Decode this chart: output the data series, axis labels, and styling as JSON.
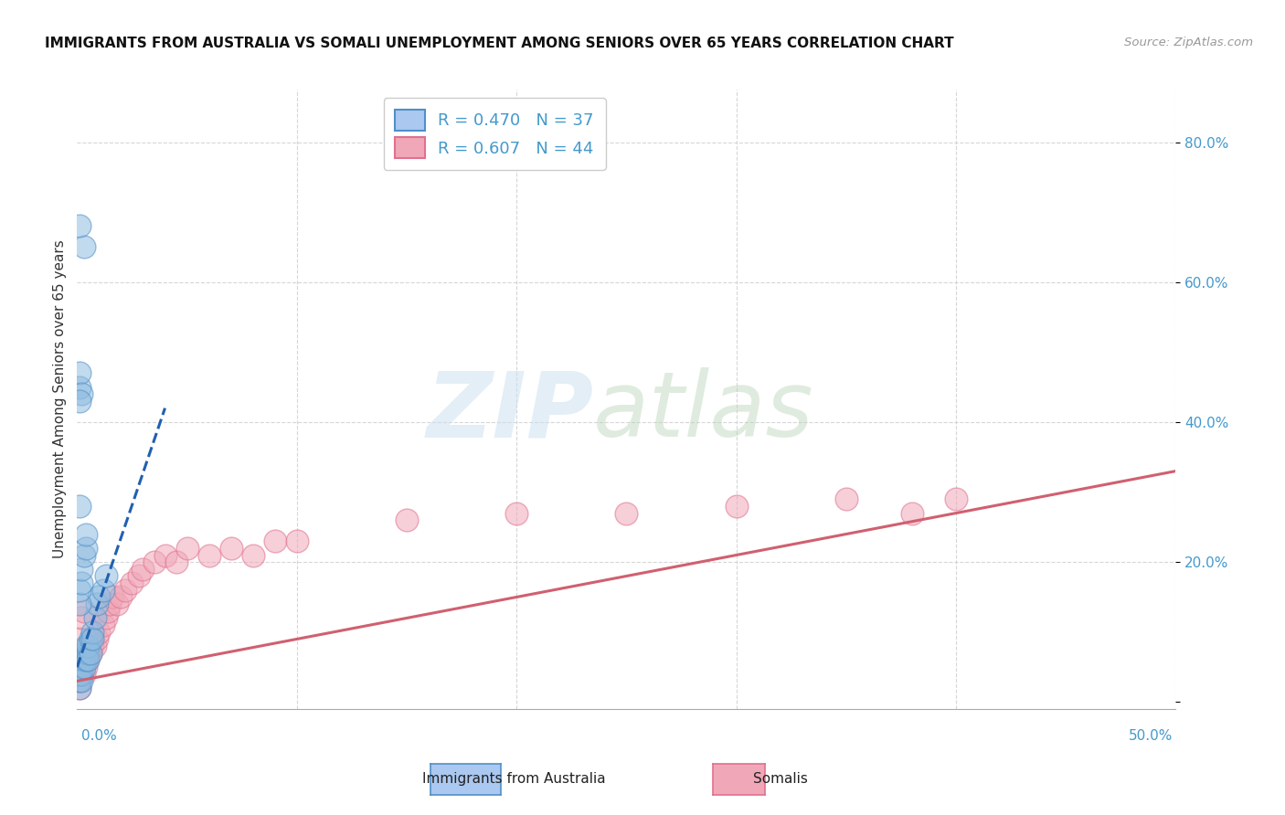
{
  "title": "IMMIGRANTS FROM AUSTRALIA VS SOMALI UNEMPLOYMENT AMONG SENIORS OVER 65 YEARS CORRELATION CHART",
  "source": "Source: ZipAtlas.com",
  "ylabel": "Unemployment Among Seniors over 65 years",
  "legend1_label": "R = 0.470   N = 37",
  "legend2_label": "R = 0.607   N = 44",
  "legend1_fc": "#aac8f0",
  "legend2_fc": "#f0a8b8",
  "blue_fc": "#90bce0",
  "pink_fc": "#f0a8b8",
  "blue_ec": "#5090c8",
  "pink_ec": "#e07090",
  "blue_line_color": "#2060b0",
  "pink_line_color": "#d06070",
  "xlim": [
    0.0,
    0.5
  ],
  "ylim": [
    -0.01,
    0.875
  ],
  "yticks": [
    0.0,
    0.2,
    0.4,
    0.6,
    0.8
  ],
  "ytick_labels": [
    "",
    "20.0%",
    "40.0%",
    "60.0%",
    "80.0%"
  ],
  "blue_scatter_x": [
    0.001,
    0.001,
    0.001,
    0.002,
    0.002,
    0.002,
    0.003,
    0.003,
    0.003,
    0.004,
    0.004,
    0.005,
    0.005,
    0.005,
    0.006,
    0.006,
    0.007,
    0.007,
    0.008,
    0.009,
    0.01,
    0.012,
    0.013,
    0.001,
    0.001,
    0.002,
    0.002,
    0.003,
    0.004,
    0.004,
    0.001,
    0.001,
    0.002,
    0.003,
    0.001,
    0.001,
    0.001
  ],
  "blue_scatter_y": [
    0.02,
    0.03,
    0.04,
    0.05,
    0.04,
    0.03,
    0.06,
    0.07,
    0.05,
    0.08,
    0.06,
    0.07,
    0.08,
    0.06,
    0.09,
    0.07,
    0.1,
    0.09,
    0.12,
    0.14,
    0.15,
    0.16,
    0.18,
    0.14,
    0.16,
    0.17,
    0.19,
    0.21,
    0.22,
    0.24,
    0.45,
    0.47,
    0.44,
    0.65,
    0.68,
    0.43,
    0.28
  ],
  "pink_scatter_x": [
    0.001,
    0.001,
    0.002,
    0.002,
    0.003,
    0.003,
    0.004,
    0.004,
    0.005,
    0.006,
    0.007,
    0.008,
    0.009,
    0.01,
    0.012,
    0.013,
    0.014,
    0.015,
    0.016,
    0.018,
    0.02,
    0.022,
    0.025,
    0.028,
    0.03,
    0.035,
    0.04,
    0.045,
    0.05,
    0.06,
    0.07,
    0.08,
    0.09,
    0.1,
    0.15,
    0.2,
    0.25,
    0.3,
    0.35,
    0.38,
    0.4,
    0.001,
    0.002,
    0.003
  ],
  "pink_scatter_y": [
    0.02,
    0.03,
    0.04,
    0.05,
    0.06,
    0.04,
    0.07,
    0.05,
    0.06,
    0.07,
    0.08,
    0.08,
    0.09,
    0.1,
    0.11,
    0.12,
    0.13,
    0.14,
    0.15,
    0.14,
    0.15,
    0.16,
    0.17,
    0.18,
    0.19,
    0.2,
    0.21,
    0.2,
    0.22,
    0.21,
    0.22,
    0.21,
    0.23,
    0.23,
    0.26,
    0.27,
    0.27,
    0.28,
    0.29,
    0.27,
    0.29,
    0.09,
    0.12,
    0.13
  ],
  "blue_line_x": [
    0.0,
    0.04
  ],
  "blue_line_y": [
    0.05,
    0.42
  ],
  "pink_line_x": [
    0.0,
    0.5
  ],
  "pink_line_y": [
    0.03,
    0.33
  ],
  "background_color": "#ffffff",
  "grid_color": "#cccccc",
  "bottom_legend_labels": [
    "Immigrants from Australia",
    "Somalis"
  ]
}
